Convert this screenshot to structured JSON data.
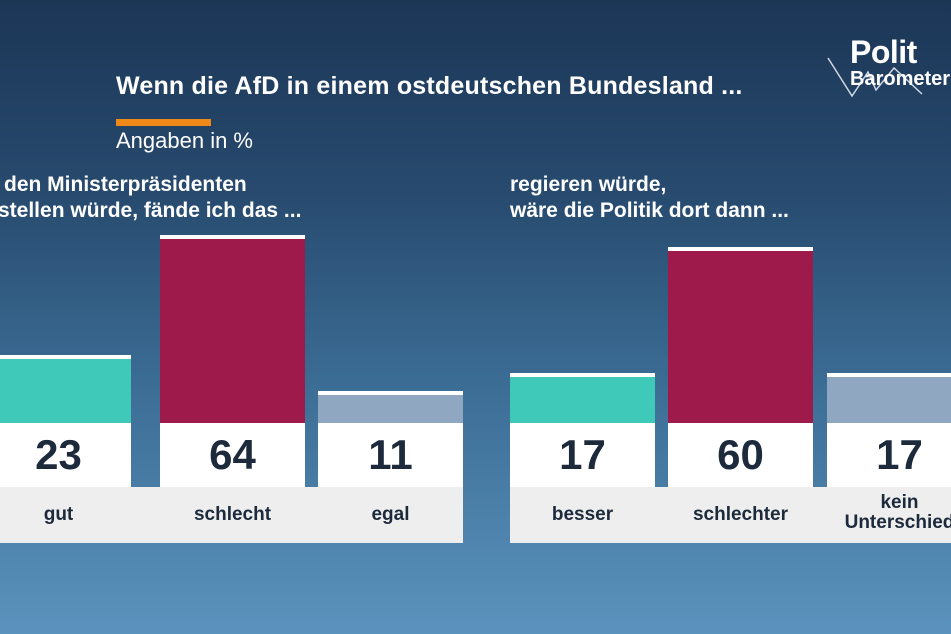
{
  "title": "Wenn die AfD in einem ostdeutschen Bundesland ...",
  "subtitle": "Angaben in %",
  "logo": {
    "line1": "Polit",
    "line2": "Barometer"
  },
  "colors": {
    "positive": "#3ec9b9",
    "negative": "#9d1a4b",
    "neutral": "#8fa7c1",
    "accent": "#ef8a1a"
  },
  "chart_data": [
    {
      "type": "bar",
      "question": [
        "den Ministerpräsidenten",
        "stellen würde, fände ich das ..."
      ],
      "categories": [
        "gut",
        "schlecht",
        "egal"
      ],
      "values": [
        23,
        64,
        11
      ],
      "ylim": [
        0,
        100
      ]
    },
    {
      "type": "bar",
      "question": [
        "regieren würde,",
        "wäre die Politik dort dann ..."
      ],
      "categories": [
        "besser",
        "schlechter",
        "kein Unterschied"
      ],
      "values": [
        17,
        60,
        17
      ],
      "ylim": [
        0,
        100
      ]
    }
  ]
}
